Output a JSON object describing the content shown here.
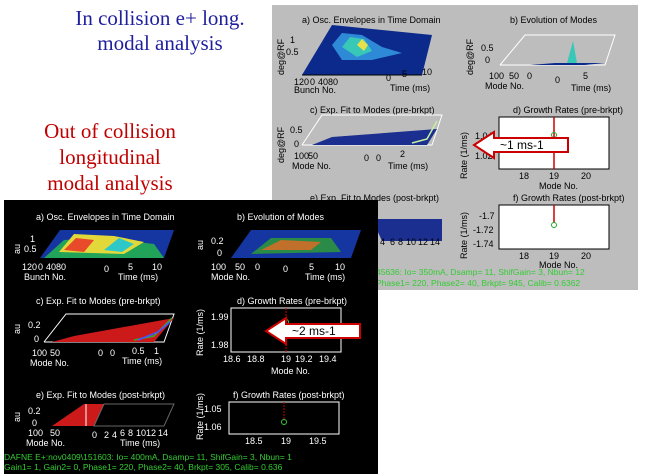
{
  "headings": {
    "top": [
      "In collision e+ long.",
      "modal analysis"
    ],
    "middle": [
      "Out of collision",
      "longitudinal",
      "modal analysis"
    ]
  },
  "colors": {
    "top_heading": "#1f1f9e",
    "middle_heading": "#c00000",
    "status_text": "#33cc33",
    "callout_outline": "#cc0000"
  },
  "figure_top": {
    "panels": {
      "a": {
        "title": "a) Osc. Envelopes in Time Domain",
        "zlabel": "deg@RF",
        "zticks": [
          "1",
          "0.5"
        ],
        "xlabel": "Time (ms)",
        "xticks": [
          "0",
          "5",
          "10"
        ],
        "ylabel": "Bunch No.",
        "yticks": [
          "120",
          "0",
          "40",
          "80"
        ]
      },
      "b": {
        "title": "b) Evolution of Modes",
        "zlabel": "deg@RF",
        "zticks": [
          "0.5",
          "0"
        ],
        "xlabel": "Time (ms)",
        "xticks": [
          "0",
          "5"
        ],
        "ylabel": "Mode No.",
        "yticks": [
          "100",
          "50",
          "0"
        ]
      },
      "c": {
        "title": "c) Exp. Fit to Modes (pre-brkpt)",
        "zlabel": "deg@RF",
        "zticks": [
          "0.5",
          "0"
        ],
        "xlabel": "Time (ms)",
        "xticks": [
          "0",
          "0",
          "2"
        ],
        "ylabel": "Mode No.",
        "yticks": [
          "100",
          "50"
        ]
      },
      "d": {
        "title": "d) Growth Rates (pre-brkpt)",
        "ylabel": "Rate (1/ms)",
        "yticks": [
          "1.04",
          "1.02"
        ],
        "xticks": [
          "18",
          "19",
          "20"
        ],
        "xlabel": "Mode No."
      },
      "e": {
        "title": "e) Exp. Fit to Modes (post-brkpt)",
        "xticks": [
          "4",
          "6",
          "8",
          "10",
          "12",
          "14"
        ]
      },
      "f": {
        "title": "f) Growth Rates (post-brkpt)",
        "ylabel": "Rate (1/ms)",
        "yticks": [
          "-1.7",
          "-1.72",
          "-1.74"
        ],
        "xticks": [
          "18",
          "19",
          "20"
        ],
        "xlabel": "Mode No."
      }
    },
    "status_lines": [
      "45636:  Io= 350mA,  Dsamp= 11,  ShifGain= 3,  Nbun= 12",
      "Phase1= 220,  Phase2= 40,  Brkpt= 945,  Calib= 0.6362"
    ],
    "callout": "~1 ms-1"
  },
  "figure_bottom": {
    "panels": {
      "a": {
        "title": "a) Osc. Envelopes in Time Domain",
        "zlabel": "au",
        "zticks": [
          "1",
          "0.5"
        ],
        "xlabel": "Time (ms)",
        "xticks": [
          "0",
          "5",
          "10"
        ],
        "ylabel": "Bunch No.",
        "yticks": [
          "120",
          "0",
          "40",
          "80"
        ]
      },
      "b": {
        "title": "b) Evolution of Modes",
        "zlabel": "au",
        "zticks": [
          "0.2",
          "0"
        ],
        "xlabel": "Time (ms)",
        "xticks": [
          "0",
          "5",
          "10"
        ],
        "ylabel": "Mode No.",
        "yticks": [
          "100",
          "50",
          "0"
        ]
      },
      "c": {
        "title": "c) Exp. Fit to Modes (pre-brkpt)",
        "zlabel": "au",
        "zticks": [
          "0.2",
          "0"
        ],
        "xlabel": "Time (ms)",
        "xticks": [
          "0",
          "0",
          "0.5",
          "1"
        ],
        "ylabel": "Mode No.",
        "yticks": [
          "100",
          "50"
        ]
      },
      "d": {
        "title": "d) Growth Rates (pre-brkpt)",
        "ylabel": "Rate (1/ms)",
        "yticks": [
          "1.99",
          "1.98"
        ],
        "xticks": [
          "18.6",
          "18.8",
          "19",
          "19.2",
          "19.4"
        ],
        "xlabel": "Mode No."
      },
      "e": {
        "title": "e) Exp. Fit to Modes (post-brkpt)",
        "zlabel": "au",
        "zticks": [
          "0.2",
          "0"
        ],
        "xlabel": "Time (ms)",
        "xticks": [
          "0",
          "2",
          "4",
          "6",
          "8",
          "10",
          "12",
          "14"
        ],
        "ylabel": "Mode No.",
        "yticks": [
          "100",
          "50"
        ]
      },
      "f": {
        "title": "f) Growth Rates (post-brkpt)",
        "ylabel": "Rate (1/ms)",
        "yticks": [
          "-1.05",
          "-1.06"
        ],
        "xticks": [
          "18.5",
          "19",
          "19.5"
        ],
        "xlabel": "Mode No."
      }
    },
    "status_lines": [
      "DAFNE E+:nov0409\\151603:  Io= 400mA,  Dsamp= 11,  ShifGain= 3,  Nbun= 1",
      "Gain1= 1,  Gain2= 0,  Phase1= 220,  Phase2= 40,  Brkpt= 305,  Calib= 0.636"
    ],
    "callout": "~2 ms-1"
  }
}
